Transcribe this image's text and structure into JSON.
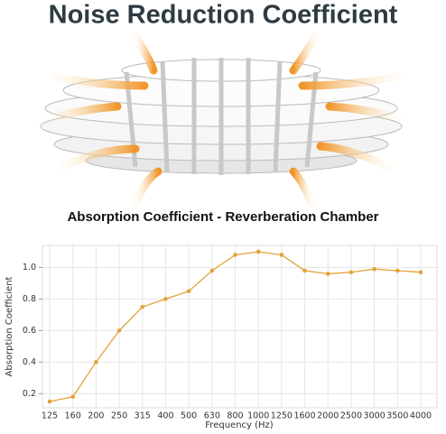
{
  "chart_data": {
    "type": "line",
    "title": "Noise Reduction Coefficient",
    "subtitle": "Absorption Coefficient - Reverberation Chamber",
    "x_label": "Frequency (Hz)",
    "y_label": "Absorption Coefficient",
    "categories": [
      "125",
      "160",
      "200",
      "250",
      "315",
      "400",
      "500",
      "630",
      "800",
      "1000",
      "1250",
      "1600",
      "2000",
      "2500",
      "3000",
      "3500",
      "4000"
    ],
    "values": [
      0.15,
      0.18,
      0.4,
      0.6,
      0.75,
      0.8,
      0.85,
      0.98,
      1.08,
      1.1,
      1.08,
      0.98,
      0.96,
      0.97,
      0.99,
      0.98,
      0.97
    ],
    "color": "#e2a33a",
    "ylim": [
      0.11,
      1.14
    ],
    "yticks": [
      0.2,
      0.4,
      0.6,
      0.8,
      {
        "value": 1,
        "label": "1.0"
      }
    ],
    "grid": true
  }
}
